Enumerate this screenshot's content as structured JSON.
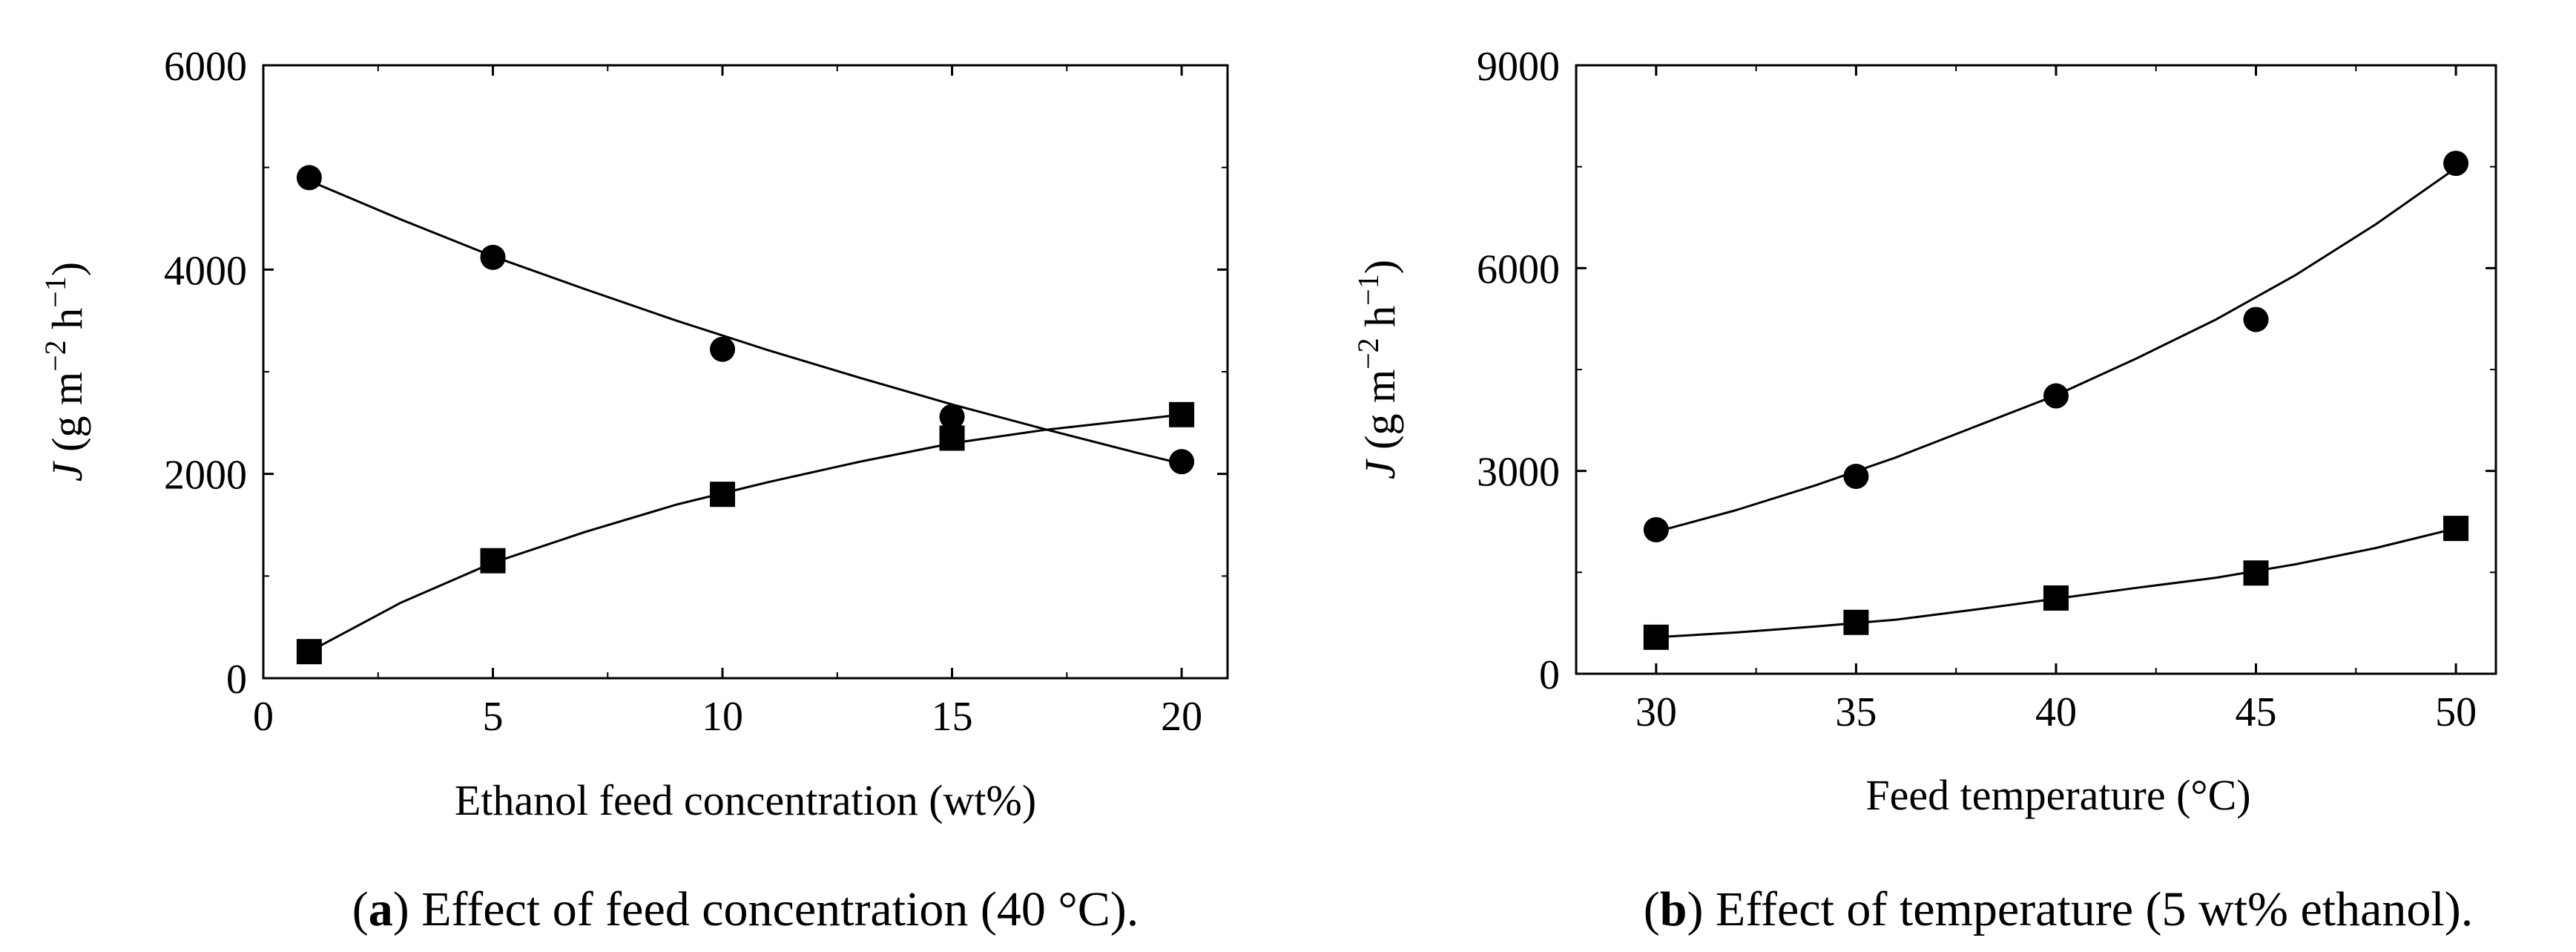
{
  "chart_data": [
    {
      "type": "scatter",
      "panel": "a",
      "caption_letter": "a",
      "caption_text": "Effect of feed concentration (40 °C).",
      "xlabel": "Ethanol feed concentration (wt%)",
      "ylabel": "J (g m⁻² h⁻¹)",
      "ylabel_parts": {
        "symbol": "J",
        "units": " (g m",
        "exp1": "−2",
        "mid": " h",
        "exp2": "−1",
        "close": ")"
      },
      "xlim": [
        0,
        21
      ],
      "ylim": [
        0,
        6000
      ],
      "xticks": [
        0,
        5,
        10,
        15,
        20
      ],
      "xtick_labels": [
        "0",
        "5",
        "10",
        "15",
        "20"
      ],
      "yticks": [
        0,
        2000,
        4000,
        6000
      ],
      "ytick_labels": [
        "0",
        "2000",
        "4000",
        "6000"
      ],
      "series": [
        {
          "name": "circles",
          "marker": "circle",
          "x": [
            1,
            5,
            10,
            15,
            20
          ],
          "y": [
            4900,
            4120,
            3220,
            2560,
            2120
          ],
          "fit_x": [
            1,
            3,
            5,
            7,
            9,
            11,
            13,
            15,
            17,
            19,
            20
          ],
          "fit_y": [
            4870,
            4490,
            4130,
            3810,
            3500,
            3210,
            2940,
            2680,
            2440,
            2210,
            2100
          ]
        },
        {
          "name": "squares",
          "marker": "square",
          "x": [
            1,
            5,
            10,
            15,
            20
          ],
          "y": [
            260,
            1150,
            1800,
            2350,
            2580
          ],
          "fit_x": [
            1,
            3,
            5,
            7,
            9,
            11,
            13,
            15,
            17,
            19,
            20
          ],
          "fit_y": [
            260,
            740,
            1130,
            1430,
            1700,
            1920,
            2120,
            2300,
            2430,
            2530,
            2580
          ]
        }
      ]
    },
    {
      "type": "scatter",
      "panel": "b",
      "caption_letter": "b",
      "caption_text": "Effect of temperature (5 wt% ethanol).",
      "xlabel": "Feed temperature (°C)",
      "ylabel": "J (g m⁻² h⁻¹)",
      "ylabel_parts": {
        "symbol": "J",
        "units": " (g m",
        "exp1": "−2",
        "mid": " h",
        "exp2": "−1",
        "close": ")"
      },
      "xlim": [
        28,
        51
      ],
      "ylim": [
        0,
        9000
      ],
      "xticks": [
        30,
        35,
        40,
        45,
        50
      ],
      "xtick_labels": [
        "30",
        "35",
        "40",
        "45",
        "50"
      ],
      "yticks": [
        0,
        3000,
        6000,
        9000
      ],
      "ytick_labels": [
        "0",
        "3000",
        "6000",
        "9000"
      ],
      "series": [
        {
          "name": "circles",
          "marker": "circle",
          "x": [
            30,
            35,
            40,
            45,
            50
          ],
          "y": [
            2130,
            2920,
            4110,
            5240,
            7550
          ],
          "fit_x": [
            30,
            32,
            34,
            36,
            38,
            40,
            42,
            44,
            46,
            48,
            50
          ],
          "fit_y": [
            2100,
            2420,
            2790,
            3200,
            3660,
            4120,
            4660,
            5240,
            5900,
            6650,
            7480
          ]
        },
        {
          "name": "squares",
          "marker": "square",
          "x": [
            30,
            35,
            40,
            45,
            50
          ],
          "y": [
            540,
            760,
            1120,
            1490,
            2150
          ],
          "fit_x": [
            30,
            32,
            34,
            36,
            38,
            40,
            42,
            44,
            46,
            48,
            50
          ],
          "fit_y": [
            540,
            610,
            700,
            800,
            950,
            1110,
            1270,
            1420,
            1620,
            1860,
            2150
          ]
        }
      ]
    }
  ]
}
